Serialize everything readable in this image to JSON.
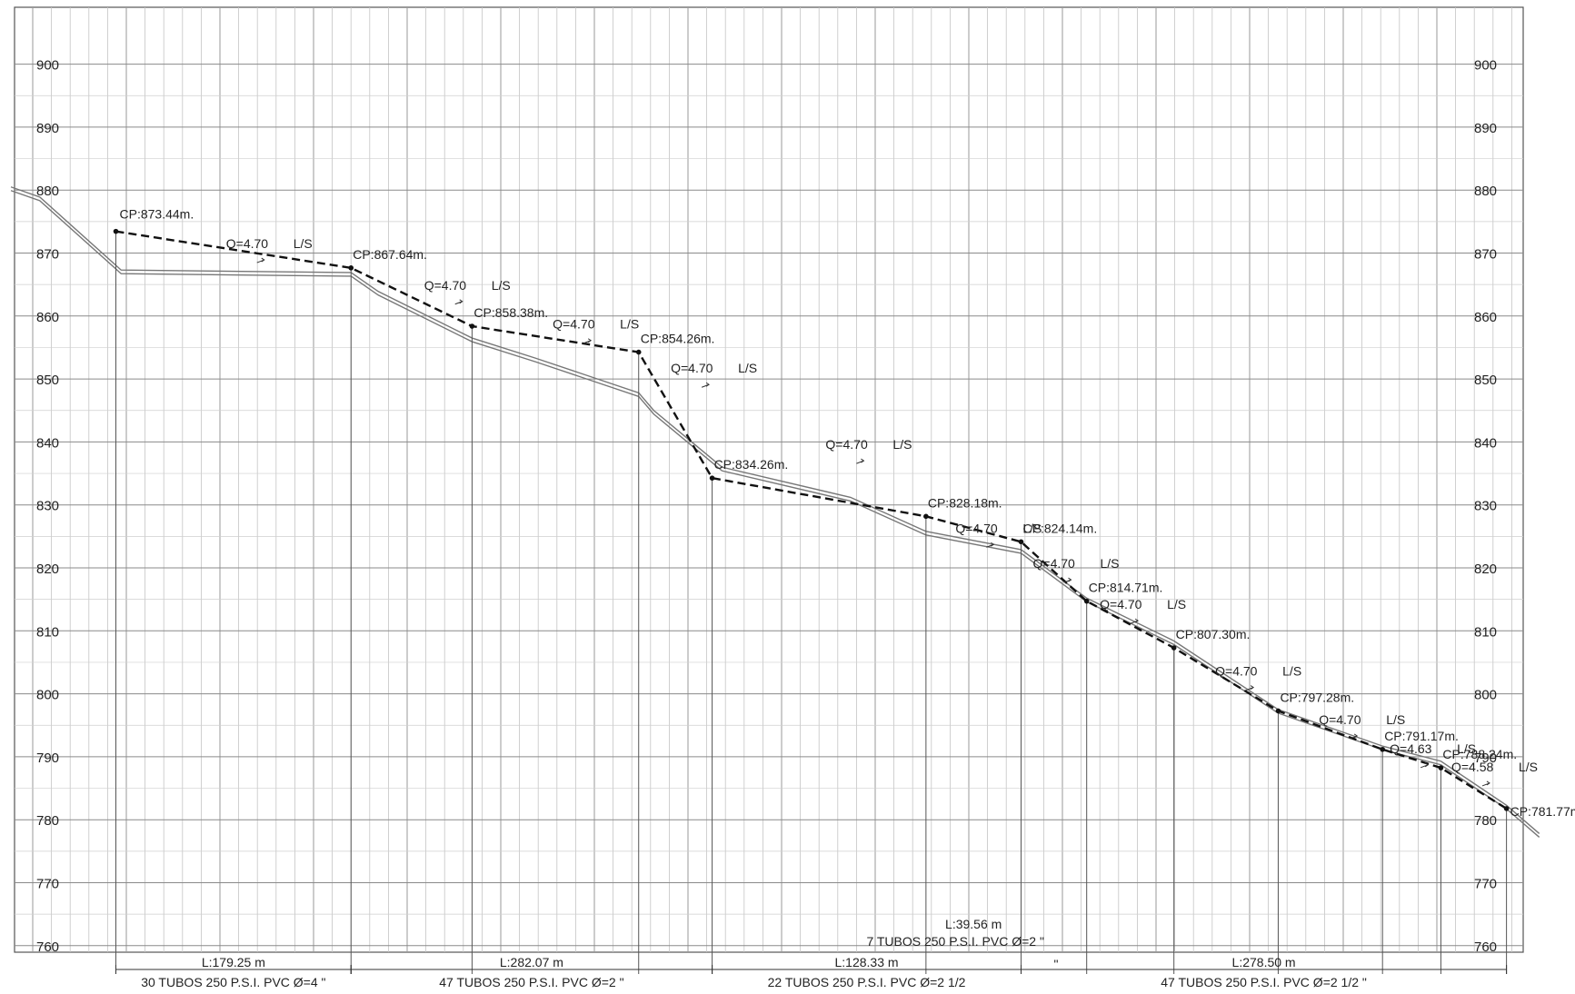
{
  "chart_data": {
    "type": "line",
    "title": "",
    "xlabel": "",
    "ylabel": "",
    "ylim": [
      760,
      902
    ],
    "yticks": [
      760,
      770,
      780,
      790,
      800,
      810,
      820,
      830,
      840,
      850,
      860,
      870,
      880,
      890,
      900
    ],
    "grid": true,
    "series": [
      {
        "kind": "hydraulic-gradient",
        "points": [
          {
            "x": 0,
            "y": 873.44,
            "label": "CP:873.44m."
          },
          {
            "x": 179.25,
            "y": 867.64,
            "label": "CP:867.64m."
          },
          {
            "x": 271.5,
            "y": 858.38,
            "label": "CP:858.38m."
          },
          {
            "x": 398.5,
            "y": 854.26,
            "label": "CP:854.26m."
          },
          {
            "x": 454.5,
            "y": 834.26,
            "label": "CP:834.26m."
          },
          {
            "x": 617.5,
            "y": 828.18,
            "label": "CP:828.18m."
          },
          {
            "x": 690.0,
            "y": 824.14,
            "label": "CP:824.14m."
          },
          {
            "x": 740.0,
            "y": 814.71,
            "label": "CP:814.71m."
          },
          {
            "x": 806.5,
            "y": 807.3,
            "label": "CP:807.30m."
          },
          {
            "x": 886.0,
            "y": 797.28,
            "label": "CP:797.28m."
          },
          {
            "x": 965.5,
            "y": 791.17,
            "label": "CP:791.17m."
          },
          {
            "x": 1010.0,
            "y": 788.24,
            "label": "CP:788.24m."
          },
          {
            "x": 1060.0,
            "y": 781.77,
            "label": "CP:781.77m."
          }
        ]
      },
      {
        "kind": "terrain",
        "points": [
          {
            "x": -80,
            "y": 880.5
          },
          {
            "x": -58,
            "y": 878.9
          },
          {
            "x": 4,
            "y": 867.3
          },
          {
            "x": 179.25,
            "y": 866.9
          },
          {
            "x": 200,
            "y": 863.9
          },
          {
            "x": 271.5,
            "y": 856.5
          },
          {
            "x": 320,
            "y": 853.3
          },
          {
            "x": 398.5,
            "y": 847.8
          },
          {
            "x": 410,
            "y": 845.0
          },
          {
            "x": 462,
            "y": 836.0
          },
          {
            "x": 560,
            "y": 831.2
          },
          {
            "x": 617.5,
            "y": 825.8
          },
          {
            "x": 690.0,
            "y": 822.9
          },
          {
            "x": 740.0,
            "y": 815.2
          },
          {
            "x": 806.5,
            "y": 808.4
          },
          {
            "x": 886.0,
            "y": 797.5
          },
          {
            "x": 965.5,
            "y": 791.7
          },
          {
            "x": 1010.0,
            "y": 789.3
          },
          {
            "x": 1060.0,
            "y": 782.3
          },
          {
            "x": 1085.0,
            "y": 777.8
          }
        ]
      }
    ],
    "flow_labels": [
      {
        "x": 84,
        "y": 870.5,
        "text": "Q=4.70",
        "unit": "L/S"
      },
      {
        "x": 235,
        "y": 863.9,
        "text": "Q=4.70",
        "unit": "L/S"
      },
      {
        "x": 333,
        "y": 857.7,
        "text": "Q=4.70",
        "unit": "L/S"
      },
      {
        "x": 423,
        "y": 850.7,
        "text": "Q=4.70",
        "unit": "L/S"
      },
      {
        "x": 541,
        "y": 838.6,
        "text": "Q=4.70",
        "unit": "L/S"
      },
      {
        "x": 640,
        "y": 825.3,
        "text": "Q=4.70",
        "unit": "L/S"
      },
      {
        "x": 699,
        "y": 819.7,
        "text": "Q=4.70",
        "unit": "L/S"
      },
      {
        "x": 750,
        "y": 813.2,
        "text": "Q=4.70",
        "unit": "L/S"
      },
      {
        "x": 838,
        "y": 802.6,
        "text": "Q=4.70",
        "unit": "L/S"
      },
      {
        "x": 917,
        "y": 794.9,
        "text": "Q=4.70",
        "unit": "L/S"
      },
      {
        "x": 971,
        "y": 790.3,
        "text": "Q=4.63",
        "unit": "L/S"
      },
      {
        "x": 1018,
        "y": 787.4,
        "text": "Q=4.58",
        "unit": "L/S"
      }
    ],
    "pipe_segments": [
      {
        "x_start": 0,
        "x_end": 179.25,
        "length": "L:179.25 m",
        "spec": "30 TUBOS 250 P.S.I. PVC Ø=4 \"",
        "row": "bottom"
      },
      {
        "x_start": 179.25,
        "x_end": 454.5,
        "length": "L:282.07 m",
        "spec": "47 TUBOS 250 P.S.I. PVC Ø=2 \"",
        "row": "bottom"
      },
      {
        "x_start": 454.5,
        "x_end": 690.0,
        "length": "L:128.33 m",
        "spec": "22 TUBOS 250 P.S.I. PVC Ø=2 1/2",
        "row": "bottom"
      },
      {
        "x_start": 690.0,
        "x_end": 1060.0,
        "length": "L:278.50 m",
        "spec": "47 TUBOS 250 P.S.I. PVC Ø=2 1/2 \"",
        "row": "bottom"
      },
      {
        "x_start": 617.5,
        "x_end": 690.0,
        "length": "L:39.56 m",
        "spec": "7 TUBOS 250 P.S.I. PVC Ø=2 \"",
        "row": "top"
      }
    ],
    "dimension_mark": "\""
  }
}
